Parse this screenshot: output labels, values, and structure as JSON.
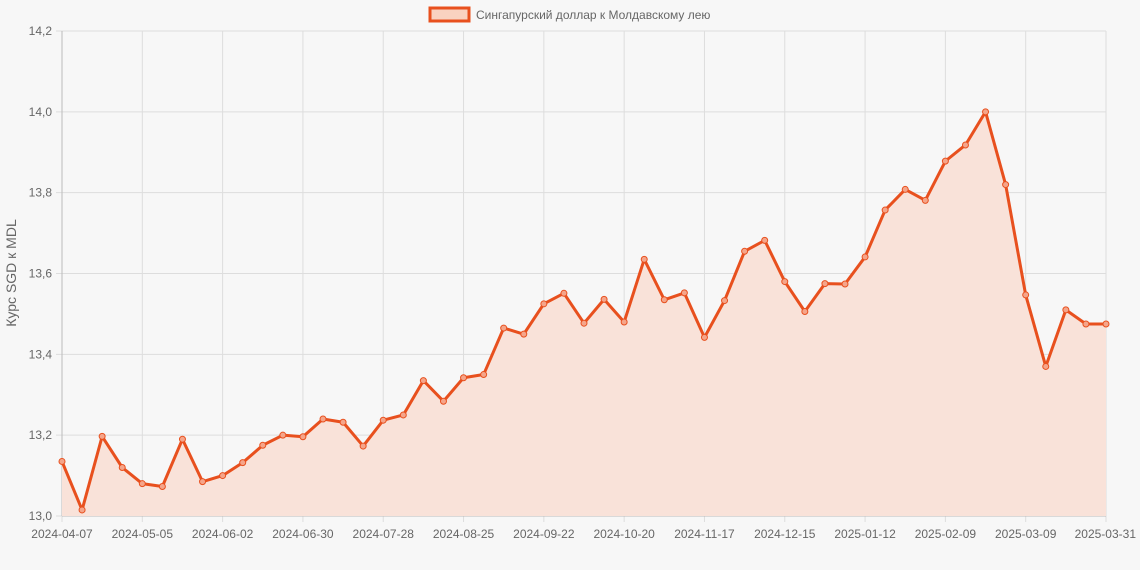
{
  "chart_data": {
    "type": "area",
    "ylabel": "Курс SGD к MDL",
    "xlabel": "",
    "ylim": [
      13.0,
      14.2
    ],
    "yticks": [
      "13,0",
      "13,2",
      "13,4",
      "13,6",
      "13,8",
      "14,0",
      "14,2"
    ],
    "ytick_values": [
      13.0,
      13.2,
      13.4,
      13.6,
      13.8,
      14.0,
      14.2
    ],
    "x_tick_labels": [
      "2024-04-07",
      "2024-05-05",
      "2024-06-02",
      "2024-06-30",
      "2024-07-28",
      "2024-08-25",
      "2024-09-22",
      "2024-10-20",
      "2024-11-17",
      "2024-12-15",
      "2025-01-12",
      "2025-02-09",
      "2025-03-09",
      "2025-03-31"
    ],
    "x_tick_indices": [
      0,
      4,
      8,
      12,
      16,
      20,
      24,
      28,
      32,
      36,
      40,
      44,
      48,
      52
    ],
    "grid": true,
    "legend_position": "top-center",
    "colors": {
      "line": "#e8501e",
      "fill": "#f9e2d9"
    },
    "series": [
      {
        "name": "Сингапурский доллар к Молдавскому лею",
        "values": [
          13.135,
          13.015,
          13.197,
          13.12,
          13.08,
          13.073,
          13.19,
          13.085,
          13.1,
          13.132,
          13.175,
          13.2,
          13.196,
          13.24,
          13.232,
          13.173,
          13.237,
          13.25,
          13.335,
          13.284,
          13.342,
          13.35,
          13.465,
          13.45,
          13.525,
          13.551,
          13.477,
          13.536,
          13.48,
          13.635,
          13.535,
          13.552,
          13.442,
          13.533,
          13.655,
          13.682,
          13.58,
          13.506,
          13.575,
          13.574,
          13.641,
          13.757,
          13.808,
          13.781,
          13.878,
          13.918,
          14.0,
          13.82,
          13.547,
          13.37,
          13.51,
          13.475,
          13.475
        ]
      }
    ]
  }
}
